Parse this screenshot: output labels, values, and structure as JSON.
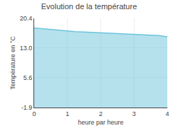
{
  "chart_data": {
    "type": "area",
    "title": "Evolution de la température",
    "xlabel": "heure par heure",
    "ylabel": "Température en °C",
    "x": [
      0,
      0.25,
      0.5,
      0.75,
      1.0,
      1.25,
      1.5,
      1.75,
      2.0,
      2.25,
      2.5,
      2.75,
      3.0,
      3.25,
      3.5,
      3.75,
      4.0
    ],
    "values": [
      18.0,
      17.8,
      17.6,
      17.4,
      17.2,
      17.1,
      17.0,
      16.9,
      16.8,
      16.7,
      16.6,
      16.5,
      16.4,
      16.3,
      16.2,
      16.1,
      15.8
    ],
    "xlim": [
      0,
      4
    ],
    "ylim": [
      -1.9,
      20.4
    ],
    "xticks": [
      0,
      1,
      2,
      3,
      4
    ],
    "yticks": [
      -1.9,
      5.6,
      {
        "value": 13.0,
        "label": "13.0"
      },
      20.4
    ],
    "color": "#6cc4dc",
    "grid": true
  }
}
